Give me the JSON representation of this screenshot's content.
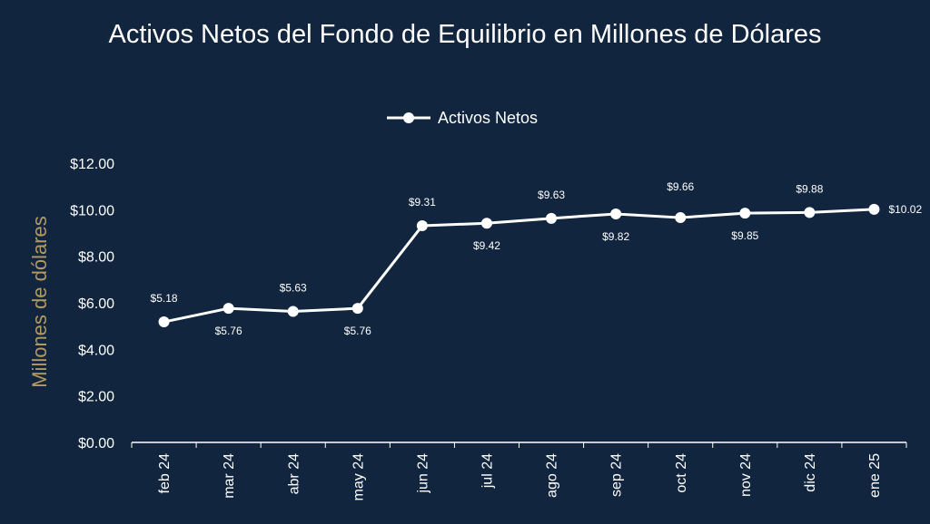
{
  "chart_data": {
    "type": "line",
    "title": "Activos Netos del Fondo de Equilibrio en Millones de Dólares",
    "xlabel": "",
    "ylabel": "Millones de dólares",
    "categories": [
      "feb 24",
      "mar 24",
      "abr 24",
      "may 24",
      "jun 24",
      "jul 24",
      "ago 24",
      "sep 24",
      "oct 24",
      "nov 24",
      "dic 24",
      "ene 25"
    ],
    "series": [
      {
        "name": "Activos Netos",
        "values": [
          5.18,
          5.76,
          5.63,
          5.76,
          9.31,
          9.42,
          9.63,
          9.82,
          9.66,
          9.85,
          9.88,
          10.02
        ],
        "labels": [
          "$5.18",
          "$5.76",
          "$5.63",
          "$5.76",
          "$9.31",
          "$9.42",
          "$9.63",
          "$9.82",
          "$9.66",
          "$9.85",
          "$9.88",
          "$10.02"
        ],
        "color": "#ffffff"
      }
    ],
    "ylim": [
      0,
      12
    ],
    "yticks": [
      "$0.00",
      "$2.00",
      "$4.00",
      "$6.00",
      "$8.00",
      "$10.00",
      "$12.00"
    ],
    "grid": false,
    "legend_position": "top-center",
    "colors": {
      "background": "#11253e",
      "axis": "#ffffff",
      "ylabel": "#b29a62"
    }
  }
}
